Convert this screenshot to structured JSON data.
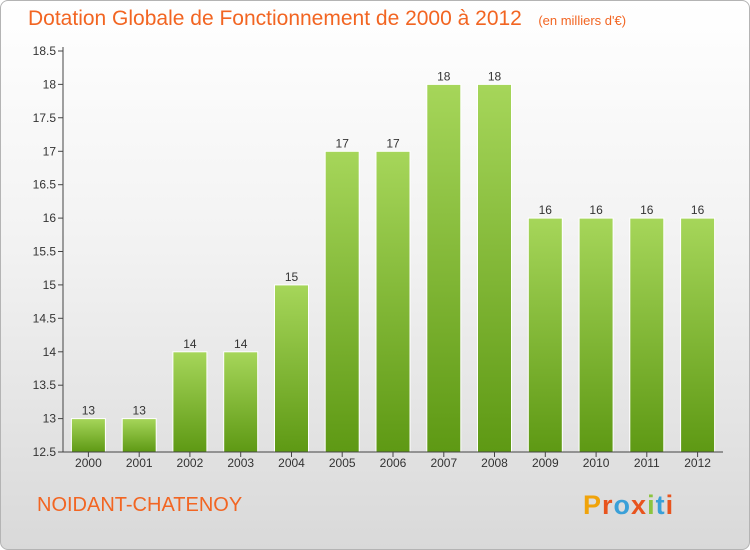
{
  "header": {
    "title": "Dotation Globale de Fonctionnement de 2000 à 2012",
    "subtitle": "(en milliers d'€)"
  },
  "footer": {
    "commune": "NOIDANT-CHATENOY"
  },
  "logo": {
    "text": "Proxiti",
    "letter_colors": [
      "#f0a30a",
      "#e8541e",
      "#3aa0d8",
      "#e8541e",
      "#8bc43f",
      "#3aa0d8",
      "#e8541e"
    ]
  },
  "colors": {
    "bar_top": "#a6d65a",
    "bar_bottom": "#5e9914",
    "bar_edge": "#ffffff",
    "axis": "#444444",
    "title": "#f26522"
  },
  "chart_data": {
    "type": "bar",
    "categories": [
      "2000",
      "2001",
      "2002",
      "2003",
      "2004",
      "2005",
      "2006",
      "2007",
      "2008",
      "2009",
      "2010",
      "2011",
      "2012"
    ],
    "values": [
      13,
      13,
      14,
      14,
      15,
      17,
      17,
      18,
      18,
      16,
      16,
      16,
      16
    ],
    "data_labels": [
      "13",
      "13",
      "14",
      "14",
      "15",
      "17",
      "17",
      "18",
      "18",
      "16",
      "16",
      "16",
      "16"
    ],
    "y_ticks": [
      "12.5",
      "13",
      "13.5",
      "14",
      "14.5",
      "15",
      "15.5",
      "16",
      "16.5",
      "17",
      "17.5",
      "18",
      "18.5"
    ],
    "ylim": [
      12.5,
      18.5
    ],
    "grid": false,
    "legend": "none"
  }
}
